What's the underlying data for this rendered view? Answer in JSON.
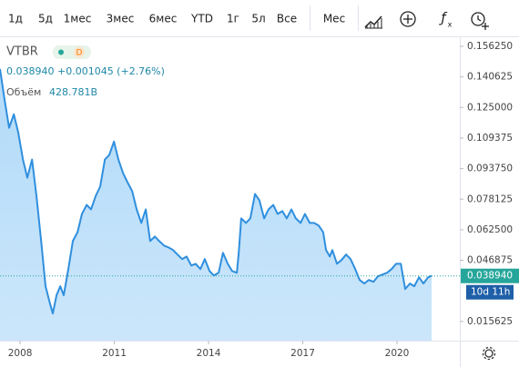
{
  "toolbar": {
    "ranges": [
      "1д",
      "5д",
      "1мес",
      "3мес",
      "6мес",
      "YTD",
      "1г",
      "5л",
      "Все"
    ],
    "interval": "Мес"
  },
  "chart_data": {
    "type": "area",
    "symbol": "VTBR",
    "badge": "D",
    "quote": "0.038940 +0.001045 (+2.76%)",
    "volume_label": "Объём",
    "volume": "428.781B",
    "price_label": "0.038940",
    "countdown": "10d 11h",
    "color": "#2f8fde",
    "fill": "#a9d6f8",
    "x": [
      2007.36,
      2007.51,
      2007.65,
      2007.8,
      2007.94,
      2008.09,
      2008.23,
      2008.38,
      2008.52,
      2008.67,
      2008.81,
      2008.96,
      2009.04,
      2009.16,
      2009.28,
      2009.39,
      2009.54,
      2009.68,
      2009.83,
      2009.97,
      2010.12,
      2010.26,
      2010.41,
      2010.55,
      2010.7,
      2010.84,
      2010.99,
      2011.13,
      2011.28,
      2011.42,
      2011.57,
      2011.71,
      2011.86,
      2012.0,
      2012.14,
      2012.29,
      2012.43,
      2012.58,
      2012.72,
      2012.87,
      2013.01,
      2013.16,
      2013.3,
      2013.45,
      2013.59,
      2013.74,
      2013.88,
      2014.03,
      2014.17,
      2014.32,
      2014.46,
      2014.61,
      2014.75,
      2014.9,
      2014.96,
      2015.04,
      2015.19,
      2015.33,
      2015.48,
      2015.62,
      2015.77,
      2015.91,
      2016.06,
      2016.2,
      2016.35,
      2016.49,
      2016.64,
      2016.78,
      2016.93,
      2017.07,
      2017.22,
      2017.36,
      2017.51,
      2017.65,
      2017.74,
      2017.86,
      2017.94,
      2018.09,
      2018.23,
      2018.38,
      2018.52,
      2018.67,
      2018.81,
      2018.96,
      2019.1,
      2019.25,
      2019.39,
      2019.54,
      2019.68,
      2019.83,
      2019.97,
      2020.12,
      2020.26,
      2020.41,
      2020.55,
      2020.7,
      2020.84,
      2020.99,
      2021.1
    ],
    "values": [
      0.1447,
      0.1285,
      0.1146,
      0.1215,
      0.1123,
      0.0984,
      0.0891,
      0.0984,
      0.0799,
      0.0567,
      0.0336,
      0.0243,
      0.0197,
      0.029,
      0.0336,
      0.029,
      0.0428,
      0.0567,
      0.0613,
      0.0706,
      0.0752,
      0.0729,
      0.0799,
      0.0845,
      0.0984,
      0.1007,
      0.1076,
      0.0984,
      0.0914,
      0.0868,
      0.0822,
      0.0729,
      0.066,
      0.0729,
      0.0567,
      0.059,
      0.0567,
      0.0544,
      0.0535,
      0.0521,
      0.0498,
      0.0475,
      0.0488,
      0.0442,
      0.0451,
      0.0424,
      0.0475,
      0.0414,
      0.0391,
      0.0405,
      0.0507,
      0.0451,
      0.0414,
      0.0405,
      0.0507,
      0.0683,
      0.066,
      0.0683,
      0.0808,
      0.0775,
      0.0683,
      0.0729,
      0.0752,
      0.0706,
      0.072,
      0.0683,
      0.0729,
      0.0683,
      0.066,
      0.0706,
      0.066,
      0.066,
      0.0646,
      0.0613,
      0.0521,
      0.0488,
      0.0521,
      0.0451,
      0.047,
      0.0498,
      0.0475,
      0.0424,
      0.0368,
      0.035,
      0.0368,
      0.0359,
      0.0387,
      0.0396,
      0.0405,
      0.0424,
      0.0451,
      0.0451,
      0.0322,
      0.035,
      0.0336,
      0.0382,
      0.035,
      0.0382,
      0.0389
    ],
    "xlim": [
      2007.36,
      2022.0
    ],
    "ylim": [
      0.0058,
      0.1609
    ],
    "xticks": [
      2008,
      2011,
      2014,
      2017,
      2020
    ],
    "yticks": [
      {
        "value": 0.15625,
        "label": "0.156250"
      },
      0.140625,
      {
        "value": 0.125,
        "label": "0.125000"
      },
      0.109375,
      {
        "value": 0.09375,
        "label": "0.093750"
      },
      0.078125,
      {
        "value": 0.0625,
        "label": "0.062500"
      },
      0.046875,
      0.015625
    ]
  }
}
